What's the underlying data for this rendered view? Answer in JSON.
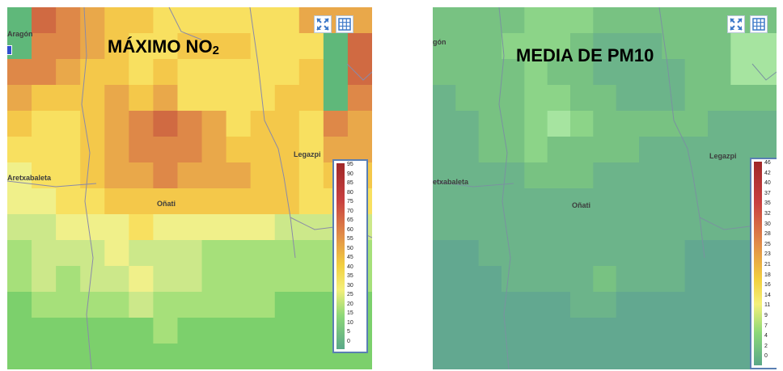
{
  "maps": [
    {
      "title_main": "MÁXIMO NO",
      "title_sub": "2",
      "places": {
        "aragon": "Aragón",
        "aretxabaleta": "Aretxabaleta",
        "onati": "Oñati",
        "legazpi": "Legazpi"
      },
      "legend_labels": [
        "95",
        "90",
        "85",
        "80",
        "75",
        "70",
        "65",
        "60",
        "55",
        "50",
        "45",
        "40",
        "35",
        "30",
        "25",
        "20",
        "15",
        "10",
        "5",
        "0"
      ],
      "tool_icons": [
        "fullscreen-icon",
        "grid-icon"
      ],
      "colors": {
        "scale": [
          "#5fb87a",
          "#7cd06c",
          "#a6e07a",
          "#cce88a",
          "#f0f08a",
          "#f8e060",
          "#f4c84a",
          "#e9a84a",
          "#de8848",
          "#d06a42",
          "#c04a3a",
          "#a03030"
        ]
      }
    },
    {
      "title_main": "MEDIA DE PM10",
      "title_sub": "",
      "places": {
        "aragon": "gón",
        "aretxabaleta": "etxabaleta",
        "onati": "Oñati",
        "legazpi": "Legazpi"
      },
      "legend_labels": [
        "46",
        "42",
        "40",
        "37",
        "35",
        "32",
        "30",
        "28",
        "25",
        "23",
        "21",
        "18",
        "16",
        "14",
        "11",
        "9",
        "7",
        "4",
        "2",
        "0"
      ],
      "tool_icons": [
        "fullscreen-icon",
        "grid-icon"
      ],
      "colors": {
        "scale": [
          "#62a890",
          "#6cb48a",
          "#78c282",
          "#8cd488",
          "#a6e4a0",
          "#bdf0b0"
        ]
      }
    }
  ]
}
